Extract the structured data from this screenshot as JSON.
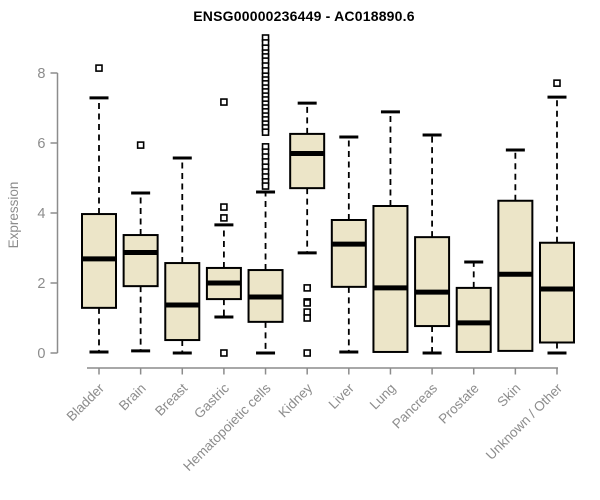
{
  "chart_data": {
    "type": "boxplot",
    "title": "ENSG00000236449 - AC018890.6",
    "xlabel": "",
    "ylabel": "Expression",
    "yticks": [
      0,
      2,
      4,
      6,
      8
    ],
    "ylim": [
      0,
      9.1
    ],
    "grid": false,
    "legend": "none",
    "categories": [
      "Bladder",
      "Brain",
      "Breast",
      "Gastric",
      "Hematopoietic cells",
      "Kidney",
      "Liver",
      "Lung",
      "Pancreas",
      "Prostate",
      "Skin",
      "Unknown / Other"
    ],
    "series": [
      {
        "name": "Bladder",
        "low": 0.03,
        "q1": 1.29,
        "median": 2.69,
        "q3": 3.97,
        "high": 7.29,
        "outliers": [
          8.14
        ]
      },
      {
        "name": "Brain",
        "low": 0.06,
        "q1": 1.91,
        "median": 2.87,
        "q3": 3.37,
        "high": 4.57,
        "outliers": [
          5.94
        ]
      },
      {
        "name": "Breast",
        "low": 0.0,
        "q1": 0.37,
        "median": 1.37,
        "q3": 2.57,
        "high": 5.57,
        "outliers": []
      },
      {
        "name": "Gastric",
        "low": 1.03,
        "q1": 1.54,
        "median": 2.0,
        "q3": 2.43,
        "high": 3.66,
        "outliers": [
          7.17,
          4.17,
          3.86,
          0.0
        ]
      },
      {
        "name": "Hematopoietic cells",
        "low": 0.0,
        "q1": 0.89,
        "median": 1.6,
        "q3": 2.37,
        "high": 4.6,
        "outliers": [
          9.0,
          8.86,
          8.71,
          8.57,
          8.46,
          8.34,
          8.2,
          8.06,
          7.91,
          7.8,
          7.69,
          7.57,
          7.46,
          7.34,
          7.23,
          7.11,
          7.0,
          6.89,
          6.77,
          6.66,
          6.54,
          6.43,
          6.31,
          5.89,
          5.74,
          5.6,
          5.46,
          5.31,
          5.17,
          5.03,
          4.89,
          4.77
        ]
      },
      {
        "name": "Kidney",
        "low": 2.86,
        "q1": 4.71,
        "median": 5.7,
        "q3": 6.26,
        "high": 7.14,
        "outliers": [
          1.86,
          1.46,
          1.43,
          1.17,
          1.0,
          0.0
        ]
      },
      {
        "name": "Liver",
        "low": 0.03,
        "q1": 1.89,
        "median": 3.11,
        "q3": 3.8,
        "high": 6.17,
        "outliers": []
      },
      {
        "name": "Lung",
        "low": 0.03,
        "q1": 0.03,
        "median": 1.86,
        "q3": 4.2,
        "high": 6.89,
        "outliers": []
      },
      {
        "name": "Pancreas",
        "low": 0.0,
        "q1": 0.77,
        "median": 1.74,
        "q3": 3.31,
        "high": 6.23,
        "outliers": []
      },
      {
        "name": "Prostate",
        "low": 0.03,
        "q1": 0.03,
        "median": 0.86,
        "q3": 1.86,
        "high": 2.6,
        "outliers": []
      },
      {
        "name": "Skin",
        "low": 0.06,
        "q1": 0.06,
        "median": 2.25,
        "q3": 4.35,
        "high": 5.8,
        "outliers": []
      },
      {
        "name": "Unknown / Other",
        "low": 0.0,
        "q1": 0.3,
        "median": 1.83,
        "q3": 3.15,
        "high": 7.31,
        "outliers": [
          7.71
        ]
      }
    ],
    "colors": {
      "box_fill": "#ece5c8",
      "box_stroke": "#000000",
      "median": "#000000",
      "whisker": "#000000",
      "outlier_stroke": "#000000",
      "outlier_fill": "#ffffff",
      "axis": "#8c8c8c",
      "tick_label": "#8c8c8c",
      "title": "#000000",
      "background": "#ffffff"
    }
  }
}
